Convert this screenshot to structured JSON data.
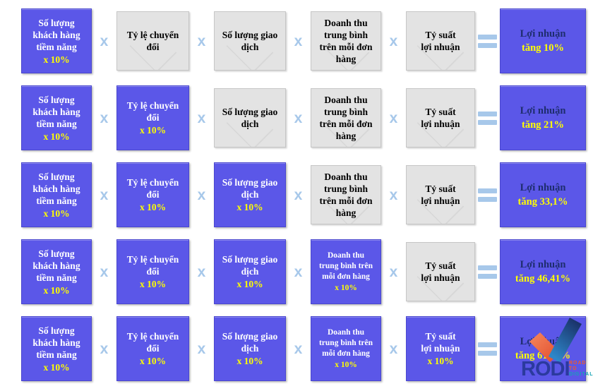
{
  "colors": {
    "active_bg": "#5b57e8",
    "inactive_bg": "#e3e3e3",
    "operator_blue": "#a7c8ea",
    "highlight_yellow": "#ffff00",
    "result_title_navy": "#1e2d6e",
    "logo_blue": "#2b3a9e",
    "logo_orange": "#f15a29",
    "logo_teal": "#14a3b4"
  },
  "multiplier": "x 10%",
  "operators": {
    "multiply": "x",
    "equals": "="
  },
  "factors": [
    {
      "id": "potential-customers",
      "lines": [
        "Số lượng",
        "khách hàng",
        "tiềm năng"
      ]
    },
    {
      "id": "conversion-rate",
      "lines": [
        "Tỷ lệ chuyển",
        "đổi"
      ]
    },
    {
      "id": "transactions",
      "lines": [
        "Số lượng giao",
        "dịch"
      ]
    },
    {
      "id": "avg-order-revenue",
      "lines": [
        "Doanh thu",
        "trung bình",
        "trên mỗi đơn",
        "hàng"
      ],
      "lines_active": [
        "Doanh thu",
        "trung bình trên",
        "mỗi đơn hàng"
      ],
      "small_active": true
    },
    {
      "id": "profit-margin",
      "lines": [
        "Tỷ suất",
        "lợi nhuận"
      ]
    }
  ],
  "rows": [
    {
      "active_count": 1,
      "result_title": "Lợi nhuận",
      "result_value": "tăng 10%"
    },
    {
      "active_count": 2,
      "result_title": "Lợi nhuận",
      "result_value": "tăng 21%"
    },
    {
      "active_count": 3,
      "result_title": "Lợi nhuận",
      "result_value": "tăng 33,1%"
    },
    {
      "active_count": 4,
      "result_title": "Lợi nhuận",
      "result_value": "tăng 46,41%"
    },
    {
      "active_count": 5,
      "result_title": "Lợi nhuận",
      "result_value": "tăng 61,05%"
    }
  ],
  "logo": {
    "name": "RODI",
    "tagline": {
      "line1": "ROAD",
      "line2": "TO",
      "line3": "DIGITAL"
    }
  }
}
